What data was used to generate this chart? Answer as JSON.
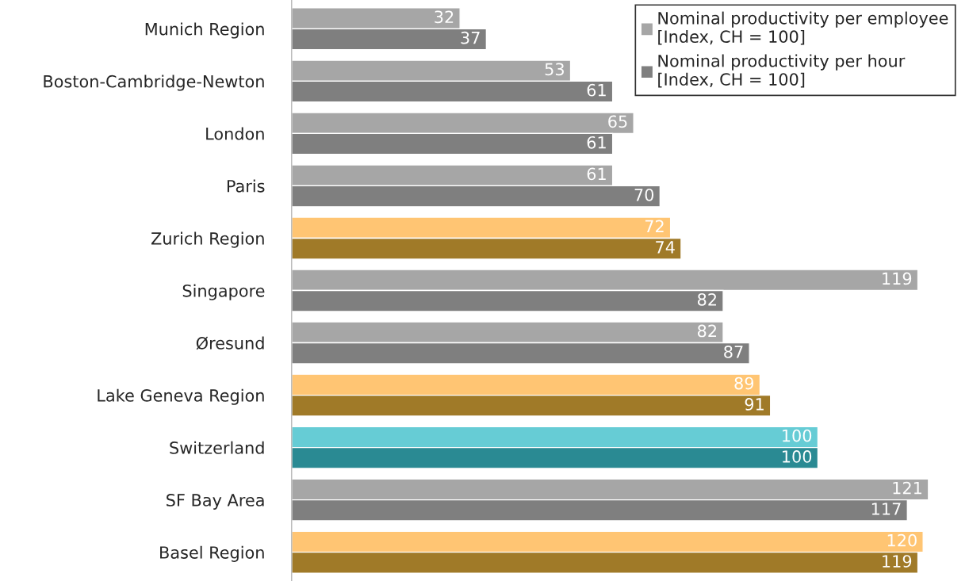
{
  "chart_data": {
    "type": "bar",
    "orientation": "horizontal",
    "categories": [
      "Munich Region",
      "Boston-Cambridge-Newton",
      "London",
      "Paris",
      "Zurich Region",
      "Singapore",
      "Øresund",
      "Lake Geneva Region",
      "Switzerland",
      "SF Bay Area",
      "Basel Region"
    ],
    "series": [
      {
        "name": "Nominal productivity per employee\n[Index, CH = 100]",
        "color": "#a6a6a6",
        "values": [
          32,
          53,
          65,
          61,
          72,
          119,
          82,
          89,
          100,
          121,
          120
        ],
        "colors": [
          "#a6a6a6",
          "#a6a6a6",
          "#a6a6a6",
          "#a6a6a6",
          "#ffc573",
          "#a6a6a6",
          "#a6a6a6",
          "#ffc573",
          "#66ccd5",
          "#a6a6a6",
          "#ffc573"
        ]
      },
      {
        "name": "Nominal productivity per hour\n[Index, CH = 100]",
        "color": "#7f7f7f",
        "values": [
          37,
          61,
          61,
          70,
          74,
          82,
          87,
          91,
          100,
          117,
          119
        ],
        "colors": [
          "#7f7f7f",
          "#7f7f7f",
          "#7f7f7f",
          "#7f7f7f",
          "#a07a28",
          "#7f7f7f",
          "#7f7f7f",
          "#a07a28",
          "#2a8a93",
          "#7f7f7f",
          "#a07a28"
        ]
      }
    ],
    "data_labels": true,
    "legend": "top right",
    "grid": false
  }
}
